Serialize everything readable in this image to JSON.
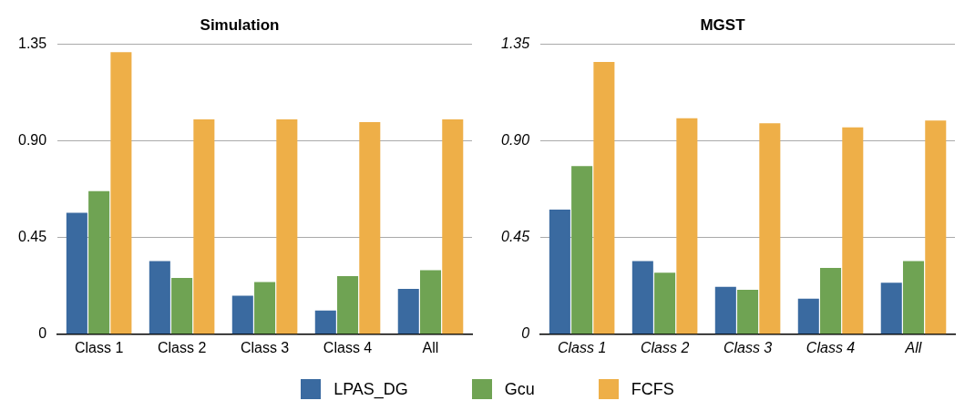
{
  "chart_data": [
    {
      "type": "bar",
      "title": "Simulation",
      "categories": [
        "Class 1",
        "Class 2",
        "Class 3",
        "Class 4",
        "All"
      ],
      "series": [
        {
          "name": "LPAS_DG",
          "color": "#3a6aa0",
          "values": [
            0.565,
            0.34,
            0.179,
            0.11,
            0.211
          ]
        },
        {
          "name": "Gcu",
          "color": "#6fa353",
          "values": [
            0.666,
            0.262,
            0.243,
            0.271,
            0.298
          ]
        },
        {
          "name": "FCFS",
          "color": "#eeaf48",
          "values": [
            1.313,
            1.0,
            1.0,
            0.987,
            1.0
          ]
        }
      ],
      "ylim": [
        0,
        1.35
      ],
      "yticks": [
        0,
        0.45,
        {
          "value": 0.9,
          "label": "0.90"
        },
        1.35
      ],
      "grid": "y",
      "legend": "bottom"
    },
    {
      "type": "bar",
      "title": "MGST",
      "categories": [
        "Class 1",
        "Class 2",
        "Class 3",
        "Class 4",
        "All"
      ],
      "series": [
        {
          "color": "#3a6aa0",
          "values": [
            0.58,
            0.341,
            0.221,
            0.166,
            0.24
          ]
        },
        {
          "color": "#6fa353",
          "values": [
            0.783,
            0.286,
            0.207,
            0.309,
            0.341
          ]
        },
        {
          "color": "#eeaf48",
          "values": [
            1.267,
            1.005,
            0.982,
            0.963,
            0.995
          ]
        }
      ],
      "ylim": [
        0,
        1.35
      ],
      "yticks": [
        0,
        0.45,
        {
          "value": 0.9,
          "label": "0.90"
        },
        1.35
      ],
      "grid": "y"
    }
  ]
}
